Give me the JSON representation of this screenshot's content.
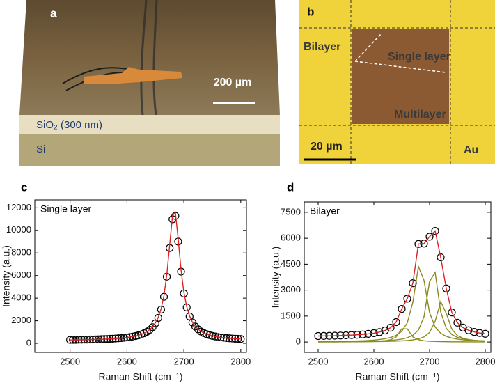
{
  "panels": {
    "a": {
      "label": "a",
      "scale_bar": "200 µm",
      "layers": [
        "SiO₂ (300 nm)",
        "Si"
      ]
    },
    "b": {
      "label": "b",
      "regions": [
        "Bilayer",
        "Single layer",
        "Multilayer",
        "Au"
      ],
      "scale_bar": "20 µm"
    }
  },
  "chart_data": [
    {
      "type": "line",
      "panel_label": "c",
      "annotation": "Single layer",
      "xlabel": "Raman Shift (cm⁻¹)",
      "ylabel": "Intensity (a.u.)",
      "xlim": [
        2438,
        2810
      ],
      "xticks": [
        2500,
        2600,
        2700,
        2800
      ],
      "ylim": [
        -800,
        12700
      ],
      "yticks": [
        0,
        2000,
        4000,
        6000,
        8000,
        10000,
        12000
      ],
      "x": [
        2500,
        2505,
        2510,
        2515,
        2520,
        2525,
        2530,
        2535,
        2540,
        2545,
        2550,
        2555,
        2560,
        2565,
        2570,
        2575,
        2580,
        2585,
        2590,
        2595,
        2600,
        2605,
        2610,
        2615,
        2620,
        2625,
        2630,
        2635,
        2640,
        2645,
        2650,
        2655,
        2660,
        2665,
        2670,
        2675,
        2680,
        2685,
        2690,
        2695,
        2700,
        2705,
        2710,
        2715,
        2720,
        2725,
        2730,
        2735,
        2740,
        2745,
        2750,
        2755,
        2760,
        2765,
        2770,
        2775,
        2780,
        2785,
        2790,
        2795,
        2800
      ],
      "series": [
        {
          "mode": "markers",
          "color": "#000000",
          "values": [
            310,
            310,
            310,
            320,
            320,
            330,
            330,
            340,
            340,
            350,
            360,
            370,
            380,
            390,
            400,
            410,
            430,
            450,
            470,
            490,
            520,
            560,
            600,
            650,
            710,
            790,
            890,
            1020,
            1200,
            1430,
            1770,
            2250,
            2990,
            4120,
            5900,
            8440,
            10980,
            11280,
            9010,
            6350,
            4420,
            3180,
            2380,
            1850,
            1490,
            1240,
            1050,
            910,
            810,
            730,
            660,
            610,
            560,
            530,
            500,
            470,
            450,
            430,
            410,
            400,
            390
          ]
        },
        {
          "mode": "lines",
          "color": "#e02020",
          "values": [
            300,
            300,
            310,
            310,
            320,
            320,
            330,
            330,
            340,
            350,
            350,
            360,
            370,
            380,
            400,
            410,
            420,
            440,
            460,
            490,
            520,
            550,
            600,
            650,
            710,
            790,
            890,
            1030,
            1220,
            1460,
            1810,
            2300,
            3060,
            4230,
            6060,
            8680,
            11300,
            11600,
            9260,
            6520,
            4530,
            3250,
            2430,
            1880,
            1510,
            1250,
            1060,
            920,
            810,
            730,
            660,
            610,
            560,
            520,
            490,
            460,
            440,
            420,
            400,
            390,
            380
          ]
        }
      ]
    },
    {
      "type": "line",
      "panel_label": "d",
      "annotation": "Bilayer",
      "xlabel": "Raman Shift (cm⁻¹)",
      "ylabel": "Intensity (a.u.)",
      "xlim": [
        2475,
        2810
      ],
      "xticks": [
        2500,
        2600,
        2700,
        2800
      ],
      "ylim": [
        -600,
        8100
      ],
      "yticks": [
        0,
        1500,
        3000,
        4500,
        6000,
        7500
      ],
      "x": [
        2500,
        2510,
        2520,
        2530,
        2540,
        2550,
        2560,
        2570,
        2580,
        2590,
        2600,
        2610,
        2620,
        2630,
        2640,
        2650,
        2660,
        2670,
        2680,
        2690,
        2700,
        2710,
        2720,
        2730,
        2740,
        2750,
        2760,
        2770,
        2780,
        2790,
        2800
      ],
      "series": [
        {
          "mode": "lines",
          "color": "#8a8a1e",
          "values": [
            4,
            5,
            5,
            6,
            7,
            9,
            10,
            13,
            17,
            22,
            31,
            45,
            72,
            131,
            292,
            760,
            760,
            292,
            131,
            72,
            45,
            31,
            22,
            17,
            13,
            10,
            9,
            7,
            6,
            5,
            5
          ]
        },
        {
          "mode": "lines",
          "color": "#8a8a1e",
          "values": [
            23,
            26,
            29,
            33,
            38,
            44,
            51,
            60,
            72,
            88,
            110,
            142,
            188,
            261,
            387,
            618,
            1114,
            2300,
            4368,
            3566,
            1697,
            866,
            505,
            327,
            228,
            167,
            127,
            100,
            81,
            67,
            56
          ]
        },
        {
          "mode": "lines",
          "color": "#8a8a1e",
          "values": [
            13,
            14,
            16,
            18,
            20,
            23,
            26,
            30,
            34,
            41,
            48,
            59,
            73,
            93,
            123,
            169,
            246,
            389,
            690,
            1458,
            3500,
            4027,
            1737,
            790,
            431,
            268,
            181,
            131,
            98,
            77,
            61
          ]
        },
        {
          "mode": "lines",
          "color": "#8a8a1e",
          "values": [
            7,
            8,
            8,
            9,
            10,
            12,
            13,
            15,
            17,
            20,
            23,
            27,
            33,
            40,
            50,
            65,
            87,
            121,
            181,
            296,
            550,
            1200,
            2333,
            1662,
            738,
            373,
            218,
            141,
            98,
            72,
            55
          ]
        },
        {
          "mode": "markers",
          "color": "#000000",
          "values": [
            347,
            353,
            358,
            366,
            375,
            388,
            400,
            418,
            440,
            471,
            512,
            573,
            666,
            825,
            1152,
            1912,
            2507,
            3402,
            5670,
            5692,
            6092,
            6424,
            4897,
            3096,
            1710,
            1118,
            835,
            679,
            583,
            521,
            477
          ]
        },
        {
          "mode": "lines",
          "color": "#e02020",
          "values": [
            347,
            353,
            358,
            366,
            375,
            388,
            400,
            418,
            440,
            471,
            512,
            573,
            666,
            825,
            1152,
            1912,
            2507,
            3402,
            5670,
            5692,
            6092,
            6424,
            4897,
            3096,
            1710,
            1118,
            835,
            679,
            583,
            521,
            477
          ]
        }
      ]
    }
  ]
}
